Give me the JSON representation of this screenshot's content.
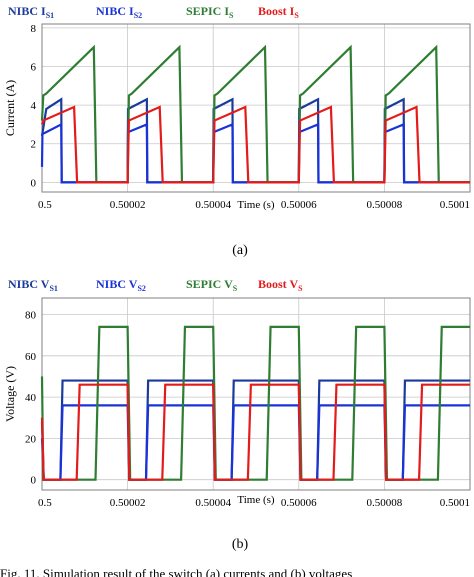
{
  "figure": {
    "caption_text": "Fig. 11. Simulation result of the switch (a) currents and (b) voltages"
  },
  "chart_data": [
    {
      "type": "line",
      "panel_label": "(a)",
      "xlabel": "Time (s)",
      "ylabel": "Current (A)",
      "xlim": [
        0.5,
        0.5001
      ],
      "ylim": [
        -0.5,
        8.2
      ],
      "xticks": [
        0.5,
        0.50002,
        0.50004,
        0.50006,
        0.50008,
        0.5001
      ],
      "xtick_labels": [
        "0.5",
        "0.50002",
        "0.50004",
        "0.50006",
        "0.50008",
        "0.5001"
      ],
      "yticks": [
        0,
        2,
        4,
        6,
        8
      ],
      "ytick_labels": [
        "0",
        "2",
        "4",
        "6",
        "8"
      ],
      "grid": true,
      "legend": [
        {
          "main": "NIBC I",
          "sub": "S1",
          "color": "#1a3a9e"
        },
        {
          "main": "NIBC I",
          "sub": "S2",
          "color": "#1a33d6"
        },
        {
          "main": "SEPIC I",
          "sub": "S",
          "color": "#2e7d32"
        },
        {
          "main": "Boost I",
          "sub": "S",
          "color": "#e31b1b"
        }
      ],
      "series": [
        {
          "name": "NIBC IS1",
          "color": "#1a3a9e",
          "x": [
            0.5,
            0.500001,
            0.5000045,
            0.5000046,
            0.50002,
            0.5000201,
            0.5000245,
            0.5000246,
            0.50004,
            0.5000401,
            0.5000445,
            0.5000446,
            0.50006,
            0.5000601,
            0.5000645,
            0.5000646,
            0.50008,
            0.5000801,
            0.5000845,
            0.5000846,
            0.5001
          ],
          "y": [
            2.4,
            3.8,
            4.3,
            0,
            0,
            3.8,
            4.3,
            0,
            0,
            3.8,
            4.3,
            0,
            0,
            3.8,
            4.3,
            0,
            0,
            3.8,
            4.3,
            0,
            0
          ]
        },
        {
          "name": "NIBC IS2",
          "color": "#1a33d6",
          "x": [
            0.5,
            0.5000001,
            0.500001,
            0.5000045,
            0.5000046,
            0.50002,
            0.5000201,
            0.5000245,
            0.5000246,
            0.50004,
            0.5000401,
            0.5000445,
            0.5000446,
            0.50006,
            0.5000601,
            0.5000645,
            0.5000646,
            0.50008,
            0.5000801,
            0.5000845,
            0.5000846,
            0.5001
          ],
          "y": [
            0.8,
            2.5,
            2.6,
            3.0,
            0,
            0,
            2.6,
            3.0,
            0,
            0,
            2.6,
            3.0,
            0,
            0,
            2.6,
            3.0,
            0,
            0,
            2.6,
            3.0,
            0,
            0
          ]
        },
        {
          "name": "SEPIC IS",
          "color": "#2e7d32",
          "x": [
            0.5,
            0.5000003,
            0.500001,
            0.5000121,
            0.5000127,
            0.50002,
            0.5000203,
            0.500021,
            0.5000321,
            0.5000327,
            0.50004,
            0.5000403,
            0.500041,
            0.5000521,
            0.5000527,
            0.50006,
            0.5000603,
            0.500061,
            0.5000721,
            0.5000727,
            0.50008,
            0.5000803,
            0.500081,
            0.5000921,
            0.5000927,
            0.5001
          ],
          "y": [
            3.2,
            4.5,
            4.6,
            7.0,
            0,
            0,
            4.5,
            4.6,
            7.0,
            0,
            0,
            4.5,
            4.6,
            7.0,
            0,
            0,
            4.5,
            4.6,
            7.0,
            0,
            0,
            4.5,
            4.6,
            7.0,
            0,
            0
          ]
        },
        {
          "name": "Boost IS",
          "color": "#e31b1b",
          "x": [
            0.5,
            0.5000003,
            0.5000075,
            0.5000082,
            0.50002,
            0.5000203,
            0.5000275,
            0.5000282,
            0.50004,
            0.5000403,
            0.5000475,
            0.5000482,
            0.50006,
            0.5000603,
            0.5000675,
            0.5000682,
            0.50008,
            0.5000803,
            0.5000875,
            0.5000882,
            0.5001
          ],
          "y": [
            3.0,
            3.2,
            3.9,
            0,
            0,
            3.2,
            3.9,
            0,
            0,
            3.2,
            3.9,
            0,
            0,
            3.2,
            3.9,
            0,
            0,
            3.2,
            3.9,
            0,
            0
          ]
        }
      ]
    },
    {
      "type": "line",
      "panel_label": "(b)",
      "xlabel": "Time (s)",
      "ylabel": "Voltage (V)",
      "xlim": [
        0.5,
        0.5001
      ],
      "ylim": [
        -5,
        88
      ],
      "xticks": [
        0.5,
        0.50002,
        0.50004,
        0.50006,
        0.50008,
        0.5001
      ],
      "xtick_labels": [
        "0.5",
        "0.50002",
        "0.50004",
        "0.50006",
        "0.50008",
        "0.5001"
      ],
      "yticks": [
        0,
        20,
        40,
        60,
        80
      ],
      "ytick_labels": [
        "0",
        "20",
        "40",
        "60",
        "80"
      ],
      "grid": true,
      "legend": [
        {
          "main": "NIBC V",
          "sub": "S1",
          "color": "#1a3a9e"
        },
        {
          "main": "NIBC V",
          "sub": "S2",
          "color": "#1a33d6"
        },
        {
          "main": "SEPIC V",
          "sub": "S",
          "color": "#2e7d32"
        },
        {
          "main": "Boost V",
          "sub": "S",
          "color": "#e31b1b"
        }
      ],
      "series": [
        {
          "name": "NIBC VS1",
          "color": "#1a3a9e",
          "x": [
            0.5,
            0.5000004,
            0.5000043,
            0.5000048,
            0.50002,
            0.5000204,
            0.5000243,
            0.5000248,
            0.50004,
            0.5000404,
            0.5000443,
            0.5000448,
            0.50006,
            0.5000604,
            0.5000643,
            0.5000648,
            0.50008,
            0.5000804,
            0.5000843,
            0.5000848,
            0.5001
          ],
          "y": [
            28,
            0,
            0,
            48,
            48,
            0,
            0,
            48,
            48,
            0,
            0,
            48,
            48,
            0,
            0,
            48,
            48,
            0,
            0,
            48,
            48
          ]
        },
        {
          "name": "NIBC VS2",
          "color": "#1a33d6",
          "x": [
            0.5,
            0.5000004,
            0.5000043,
            0.5000048,
            0.50002,
            0.5000204,
            0.5000243,
            0.5000248,
            0.50004,
            0.5000404,
            0.5000443,
            0.5000448,
            0.50006,
            0.5000604,
            0.5000643,
            0.5000648,
            0.50008,
            0.5000804,
            0.5000843,
            0.5000848,
            0.5001
          ],
          "y": [
            20,
            0,
            0,
            36,
            36,
            0,
            0,
            36,
            36,
            0,
            0,
            36,
            36,
            0,
            0,
            36,
            36,
            0,
            0,
            36,
            36
          ]
        },
        {
          "name": "SEPIC VS",
          "color": "#2e7d32",
          "x": [
            0.5,
            0.5000003,
            0.5000125,
            0.5000134,
            0.50002,
            0.5000206,
            0.5000325,
            0.5000334,
            0.50004,
            0.5000406,
            0.5000525,
            0.5000534,
            0.50006,
            0.5000606,
            0.5000725,
            0.5000734,
            0.50008,
            0.5000806,
            0.5000925,
            0.5000934,
            0.5001
          ],
          "y": [
            50,
            0,
            0,
            74,
            74,
            0,
            0,
            74,
            74,
            0,
            0,
            74,
            74,
            0,
            0,
            74,
            74,
            0,
            0,
            74,
            74
          ]
        },
        {
          "name": "Boost VS",
          "color": "#e31b1b",
          "x": [
            0.5,
            0.5000004,
            0.5000081,
            0.5000088,
            0.50002,
            0.5000204,
            0.5000281,
            0.5000288,
            0.50004,
            0.5000404,
            0.5000481,
            0.5000488,
            0.50006,
            0.5000604,
            0.5000681,
            0.5000688,
            0.50008,
            0.5000804,
            0.5000881,
            0.5000888,
            0.5001
          ],
          "y": [
            30,
            0,
            0,
            46,
            46,
            0,
            0,
            46,
            46,
            0,
            0,
            46,
            46,
            0,
            0,
            46,
            46,
            0,
            0,
            46,
            46
          ]
        }
      ]
    }
  ]
}
